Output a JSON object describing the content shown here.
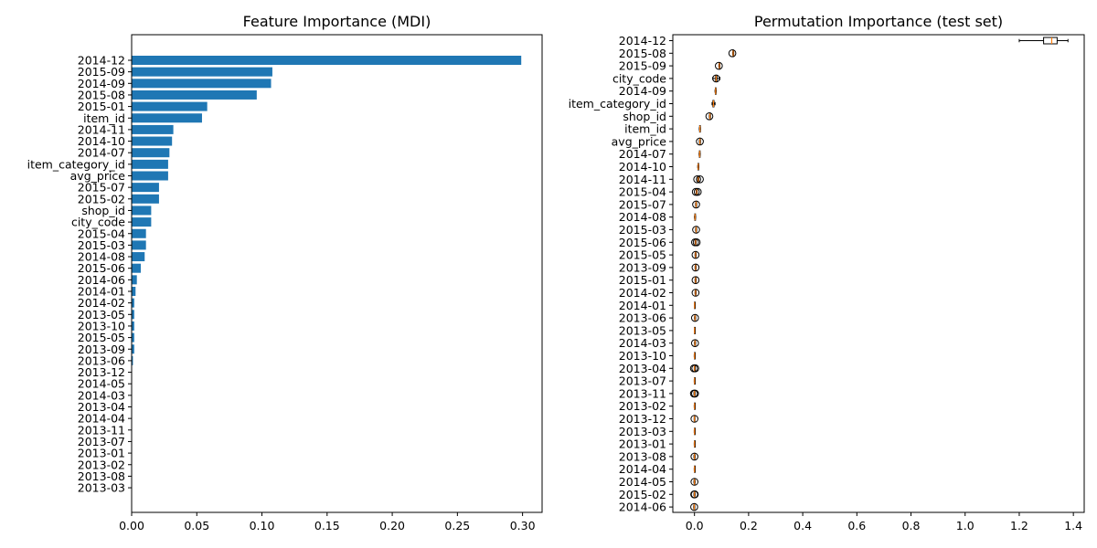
{
  "chart_data": [
    {
      "type": "bar",
      "orientation": "horizontal",
      "title": "Feature Importance (MDI)",
      "xlabel": "",
      "ylabel": "",
      "xlim": [
        0,
        0.315
      ],
      "xticks": [
        "0.00",
        "0.05",
        "0.10",
        "0.15",
        "0.20",
        "0.25",
        "0.30"
      ],
      "grid": false,
      "legend": "none",
      "bar_color": "#1f77b4",
      "categories": [
        "2014-12",
        "2015-09",
        "2014-09",
        "2015-08",
        "2015-01",
        "item_id",
        "2014-11",
        "2014-10",
        "2014-07",
        "item_category_id",
        "avg_price",
        "2015-07",
        "2015-02",
        "shop_id",
        "city_code",
        "2015-04",
        "2015-03",
        "2014-08",
        "2015-06",
        "2014-06",
        "2014-01",
        "2014-02",
        "2013-05",
        "2013-10",
        "2015-05",
        "2013-09",
        "2013-06",
        "2013-12",
        "2014-05",
        "2014-03",
        "2013-04",
        "2014-04",
        "2013-11",
        "2013-07",
        "2013-01",
        "2013-02",
        "2013-08",
        "2013-03"
      ],
      "values": [
        0.299,
        0.108,
        0.107,
        0.096,
        0.058,
        0.054,
        0.032,
        0.031,
        0.029,
        0.028,
        0.028,
        0.021,
        0.021,
        0.015,
        0.015,
        0.011,
        0.011,
        0.01,
        0.007,
        0.004,
        0.003,
        0.002,
        0.002,
        0.002,
        0.002,
        0.002,
        0.001,
        0.0003,
        0.0003,
        0.0002,
        0.0002,
        0.0002,
        0.0001,
        0.0001,
        0.0001,
        0.0001,
        0.0001,
        0.0001
      ]
    },
    {
      "type": "boxplot",
      "orientation": "horizontal",
      "title": "Permutation Importance (test set)",
      "xlabel": "",
      "ylabel": "",
      "xlim": [
        -0.08,
        1.44
      ],
      "xticks": [
        "0.0",
        "0.2",
        "0.4",
        "0.6",
        "0.8",
        "1.0",
        "1.2",
        "1.4"
      ],
      "grid": false,
      "legend": "none",
      "box_color": "#000000",
      "median_color": "#ff7f0e",
      "flier_color": "#000000",
      "categories": [
        "2014-12",
        "2015-08",
        "2015-09",
        "city_code",
        "2014-09",
        "item_category_id",
        "shop_id",
        "item_id",
        "avg_price",
        "2014-07",
        "2014-10",
        "2014-11",
        "2015-04",
        "2015-07",
        "2014-08",
        "2015-03",
        "2015-06",
        "2015-05",
        "2013-09",
        "2015-01",
        "2014-02",
        "2014-01",
        "2013-06",
        "2013-05",
        "2014-03",
        "2013-10",
        "2013-04",
        "2013-07",
        "2013-11",
        "2013-02",
        "2013-12",
        "2013-03",
        "2013-01",
        "2013-08",
        "2014-04",
        "2014-05",
        "2015-02",
        "2014-06"
      ],
      "boxes": [
        {
          "whislo": 1.2,
          "q1": 1.29,
          "med": 1.32,
          "q3": 1.34,
          "whishi": 1.38,
          "fliers": []
        },
        {
          "whislo": 0.141,
          "q1": 0.142,
          "med": 0.143,
          "q3": 0.144,
          "whishi": 0.145,
          "fliers": [
            0.14
          ]
        },
        {
          "whislo": 0.09,
          "q1": 0.091,
          "med": 0.092,
          "q3": 0.093,
          "whishi": 0.094,
          "fliers": [
            0.09
          ]
        },
        {
          "whislo": 0.068,
          "q1": 0.078,
          "med": 0.08,
          "q3": 0.083,
          "whishi": 0.094,
          "fliers": [
            0.08
          ]
        },
        {
          "whislo": 0.076,
          "q1": 0.077,
          "med": 0.078,
          "q3": 0.079,
          "whishi": 0.08,
          "fliers": []
        },
        {
          "whislo": 0.065,
          "q1": 0.068,
          "med": 0.07,
          "q3": 0.072,
          "whishi": 0.076,
          "fliers": []
        },
        {
          "whislo": 0.055,
          "q1": 0.056,
          "med": 0.057,
          "q3": 0.058,
          "whishi": 0.059,
          "fliers": [
            0.055
          ]
        },
        {
          "whislo": 0.018,
          "q1": 0.019,
          "med": 0.02,
          "q3": 0.021,
          "whishi": 0.022,
          "fliers": []
        },
        {
          "whislo": 0.018,
          "q1": 0.019,
          "med": 0.02,
          "q3": 0.021,
          "whishi": 0.022,
          "fliers": [
            0.02
          ]
        },
        {
          "whislo": 0.017,
          "q1": 0.018,
          "med": 0.019,
          "q3": 0.02,
          "whishi": 0.021,
          "fliers": []
        },
        {
          "whislo": 0.012,
          "q1": 0.013,
          "med": 0.014,
          "q3": 0.015,
          "whishi": 0.016,
          "fliers": []
        },
        {
          "whislo": 0.012,
          "q1": 0.013,
          "med": 0.014,
          "q3": 0.015,
          "whishi": 0.016,
          "fliers": [
            0.01,
            0.02
          ]
        },
        {
          "whislo": 0.006,
          "q1": 0.007,
          "med": 0.008,
          "q3": 0.009,
          "whishi": 0.01,
          "fliers": [
            0.005,
            0.012
          ]
        },
        {
          "whislo": 0.004,
          "q1": 0.005,
          "med": 0.006,
          "q3": 0.007,
          "whishi": 0.008,
          "fliers": [
            0.006
          ]
        },
        {
          "whislo": 0.0,
          "q1": 0.001,
          "med": 0.002,
          "q3": 0.003,
          "whishi": 0.004,
          "fliers": []
        },
        {
          "whislo": 0.004,
          "q1": 0.005,
          "med": 0.006,
          "q3": 0.007,
          "whishi": 0.008,
          "fliers": [
            0.006
          ]
        },
        {
          "whislo": 0.002,
          "q1": 0.003,
          "med": 0.004,
          "q3": 0.005,
          "whishi": 0.006,
          "fliers": [
            0.002,
            0.008
          ]
        },
        {
          "whislo": 0.002,
          "q1": 0.003,
          "med": 0.004,
          "q3": 0.005,
          "whishi": 0.006,
          "fliers": [
            0.004
          ]
        },
        {
          "whislo": 0.002,
          "q1": 0.003,
          "med": 0.004,
          "q3": 0.005,
          "whishi": 0.006,
          "fliers": [
            0.004
          ]
        },
        {
          "whislo": 0.002,
          "q1": 0.003,
          "med": 0.004,
          "q3": 0.005,
          "whishi": 0.006,
          "fliers": [
            0.004
          ]
        },
        {
          "whislo": 0.002,
          "q1": 0.003,
          "med": 0.004,
          "q3": 0.005,
          "whishi": 0.006,
          "fliers": [
            0.004
          ]
        },
        {
          "whislo": 0.0,
          "q1": 0.0,
          "med": 0.0,
          "q3": 0.001,
          "whishi": 0.001,
          "fliers": []
        },
        {
          "whislo": 0.0,
          "q1": 0.001,
          "med": 0.002,
          "q3": 0.003,
          "whishi": 0.004,
          "fliers": [
            0.002
          ]
        },
        {
          "whislo": 0.0,
          "q1": 0.0,
          "med": 0.0,
          "q3": 0.001,
          "whishi": 0.001,
          "fliers": []
        },
        {
          "whislo": 0.0,
          "q1": 0.001,
          "med": 0.002,
          "q3": 0.003,
          "whishi": 0.004,
          "fliers": [
            0.002
          ]
        },
        {
          "whislo": -0.001,
          "q1": 0.0,
          "med": 0.0,
          "q3": 0.0,
          "whishi": 0.001,
          "fliers": []
        },
        {
          "whislo": -0.001,
          "q1": 0.0,
          "med": 0.0,
          "q3": 0.001,
          "whishi": 0.002,
          "fliers": [
            -0.002,
            0.003
          ]
        },
        {
          "whislo": -0.001,
          "q1": 0.0,
          "med": 0.0,
          "q3": 0.0,
          "whishi": 0.001,
          "fliers": []
        },
        {
          "whislo": -0.002,
          "q1": -0.001,
          "med": 0.0,
          "q3": 0.001,
          "whishi": 0.002,
          "fliers": [
            -0.002,
            0.002
          ]
        },
        {
          "whislo": -0.001,
          "q1": 0.0,
          "med": 0.0,
          "q3": 0.0,
          "whishi": 0.001,
          "fliers": []
        },
        {
          "whislo": -0.001,
          "q1": -0.001,
          "med": 0.0,
          "q3": 0.001,
          "whishi": 0.001,
          "fliers": [
            0.0
          ]
        },
        {
          "whislo": -0.001,
          "q1": 0.0,
          "med": 0.0,
          "q3": 0.0,
          "whishi": 0.001,
          "fliers": []
        },
        {
          "whislo": -0.001,
          "q1": 0.0,
          "med": 0.0,
          "q3": 0.0,
          "whishi": 0.001,
          "fliers": []
        },
        {
          "whislo": -0.002,
          "q1": -0.001,
          "med": 0.0,
          "q3": 0.001,
          "whishi": 0.002,
          "fliers": [
            0.0
          ]
        },
        {
          "whislo": -0.001,
          "q1": 0.0,
          "med": 0.0,
          "q3": 0.0,
          "whishi": 0.001,
          "fliers": []
        },
        {
          "whislo": -0.002,
          "q1": -0.001,
          "med": 0.0,
          "q3": 0.001,
          "whishi": 0.002,
          "fliers": [
            0.0
          ]
        },
        {
          "whislo": -0.002,
          "q1": -0.001,
          "med": 0.0,
          "q3": 0.001,
          "whishi": 0.002,
          "fliers": [
            -0.001,
            0.001
          ]
        },
        {
          "whislo": -0.003,
          "q1": -0.002,
          "med": -0.001,
          "q3": 0.0,
          "whishi": 0.001,
          "fliers": [
            -0.001
          ]
        }
      ]
    }
  ]
}
